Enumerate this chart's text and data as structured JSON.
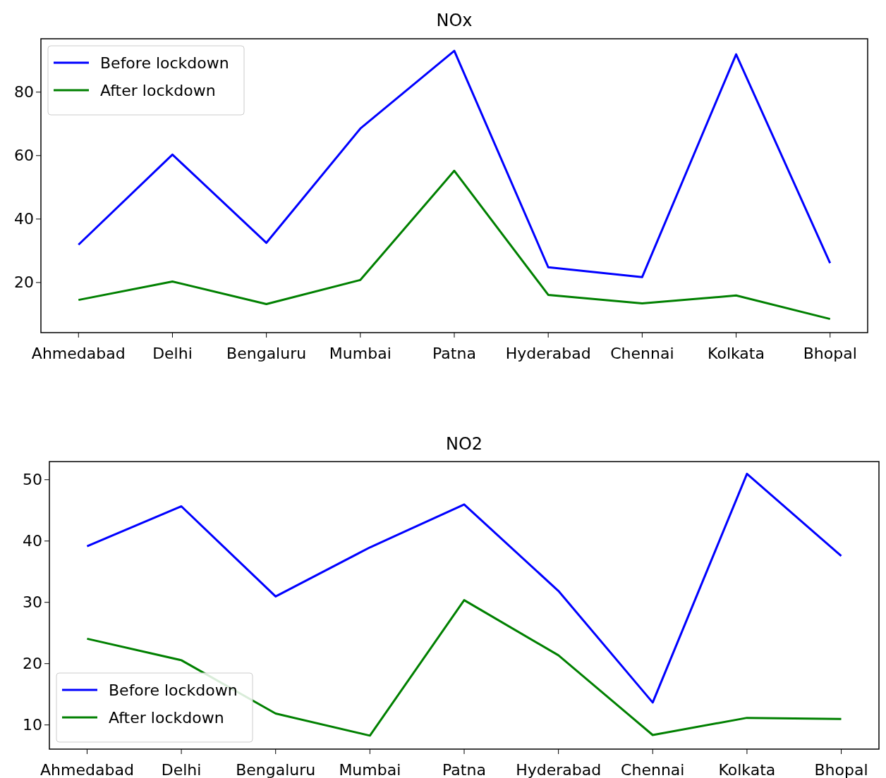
{
  "chart_data": [
    {
      "type": "line",
      "title": "NOx",
      "categories": [
        "Ahmedabad",
        "Delhi",
        "Bengaluru",
        "Mumbai",
        "Patna",
        "Hyderabad",
        "Chennai",
        "Kolkata",
        "Bhopal"
      ],
      "series": [
        {
          "name": "Before lockdown",
          "color": "#0000ff",
          "values": [
            31.8,
            60.2,
            32.4,
            68.4,
            92.9,
            24.7,
            21.6,
            91.8,
            26
          ]
        },
        {
          "name": "After lockdown",
          "color": "#008000",
          "values": [
            14.4,
            20.2,
            13.1,
            20.7,
            55.1,
            16,
            13.3,
            15.8,
            8.4
          ]
        }
      ],
      "ylim": [
        4.1,
        96.7
      ],
      "yticks": [
        20,
        40,
        60,
        80
      ],
      "grid": false,
      "legend": "top left",
      "marker": "none",
      "line_style": "solid"
    },
    {
      "type": "line",
      "title": "NO2",
      "categories": [
        "Ahmedabad",
        "Delhi",
        "Bengaluru",
        "Mumbai",
        "Patna",
        "Hyderabad",
        "Chennai",
        "Kolkata",
        "Bhopal"
      ],
      "series": [
        {
          "name": "Before lockdown",
          "color": "#0000ff",
          "values": [
            39.1,
            45.6,
            30.9,
            38.9,
            45.9,
            31.8,
            13.6,
            50.9,
            37.5
          ]
        },
        {
          "name": "After lockdown",
          "color": "#008000",
          "values": [
            24,
            20.5,
            11.8,
            8.2,
            30.3,
            21.3,
            8.3,
            11.1,
            10.9
          ]
        }
      ],
      "ylim": [
        6,
        52.9
      ],
      "yticks": [
        10,
        20,
        30,
        40,
        50
      ],
      "grid": false,
      "legend": "bottom left",
      "marker": "none",
      "line_style": "solid"
    }
  ]
}
